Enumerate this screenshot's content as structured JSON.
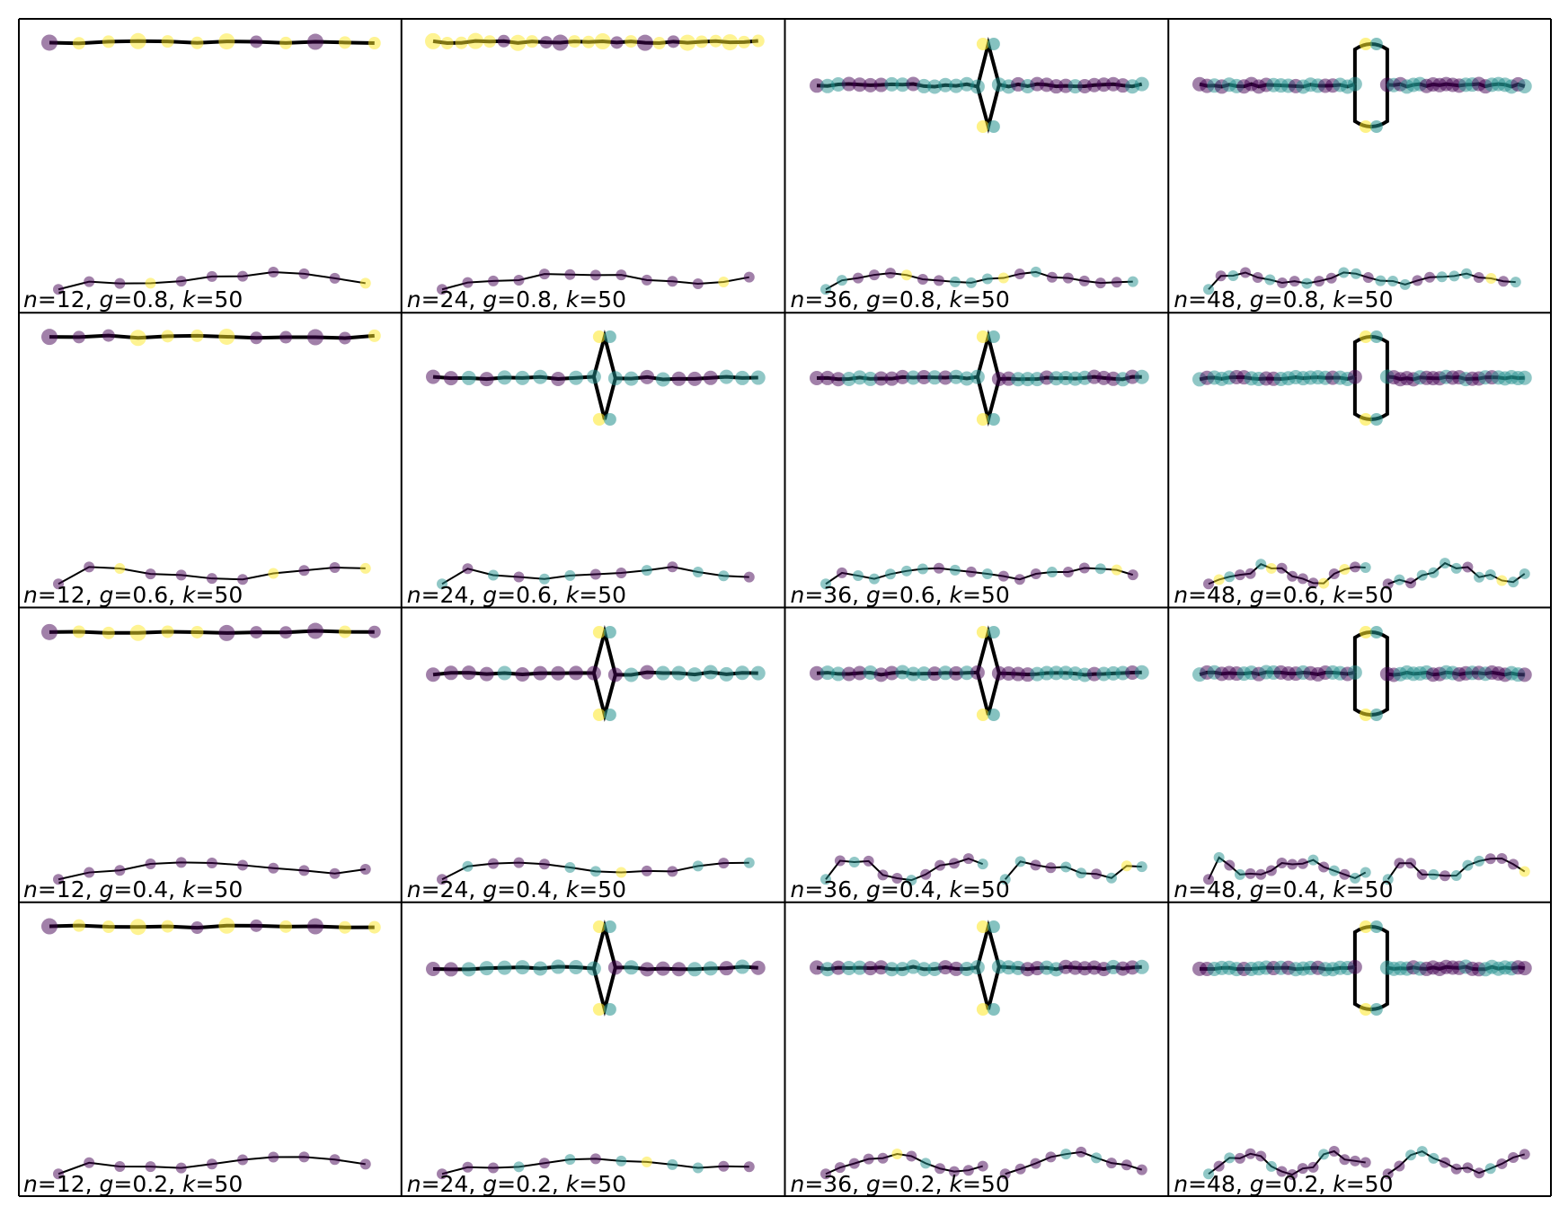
{
  "figure": {
    "rows": 4,
    "cols": 4,
    "colors": {
      "purple": "#440154",
      "teal": "#21908d",
      "yellow": "#fde725",
      "edge": "#000000",
      "frame": "#000000"
    },
    "panels": [
      {
        "n": "12",
        "g": "0.8",
        "k": "50",
        "label_n": "=12, ",
        "label_g": "=0.8, ",
        "label_k": "=50",
        "top_shape": "line",
        "top_color": "yellow",
        "bottom_color": "purple",
        "bottom_split": false
      },
      {
        "n": "24",
        "g": "0.8",
        "k": "50",
        "label_n": "=24, ",
        "label_g": "=0.8, ",
        "label_k": "=50",
        "top_shape": "line",
        "top_color": "yellow",
        "bottom_color": "purple",
        "bottom_split": false
      },
      {
        "n": "36",
        "g": "0.8",
        "k": "50",
        "label_n": "=36, ",
        "label_g": "=0.8, ",
        "label_k": "=50",
        "top_shape": "diamond",
        "top_color": "teal",
        "bottom_color": "mixed",
        "bottom_split": false
      },
      {
        "n": "48",
        "g": "0.8",
        "k": "50",
        "label_n": "=48, ",
        "label_g": "=0.8, ",
        "label_k": "=50",
        "top_shape": "loop",
        "top_color": "teal",
        "bottom_color": "mixed",
        "bottom_split": false
      },
      {
        "n": "12",
        "g": "0.6",
        "k": "50",
        "label_n": "=12, ",
        "label_g": "=0.6, ",
        "label_k": "=50",
        "top_shape": "line",
        "top_color": "yellow",
        "bottom_color": "purple",
        "bottom_split": false
      },
      {
        "n": "24",
        "g": "0.6",
        "k": "50",
        "label_n": "=24, ",
        "label_g": "=0.6, ",
        "label_k": "=50",
        "top_shape": "diamond",
        "top_color": "teal",
        "bottom_color": "mixed",
        "bottom_split": false
      },
      {
        "n": "36",
        "g": "0.6",
        "k": "50",
        "label_n": "=36, ",
        "label_g": "=0.6, ",
        "label_k": "=50",
        "top_shape": "diamond",
        "top_color": "teal",
        "bottom_color": "mixed",
        "bottom_split": false
      },
      {
        "n": "48",
        "g": "0.6",
        "k": "50",
        "label_n": "=48, ",
        "label_g": "=0.6, ",
        "label_k": "=50",
        "top_shape": "loop",
        "top_color": "teal",
        "bottom_color": "mixed",
        "bottom_split": true
      },
      {
        "n": "12",
        "g": "0.4",
        "k": "50",
        "label_n": "=12, ",
        "label_g": "=0.4, ",
        "label_k": "=50",
        "top_shape": "line",
        "top_color": "yellow",
        "bottom_color": "purple",
        "bottom_split": false
      },
      {
        "n": "24",
        "g": "0.4",
        "k": "50",
        "label_n": "=24, ",
        "label_g": "=0.4, ",
        "label_k": "=50",
        "top_shape": "diamond",
        "top_color": "teal",
        "bottom_color": "mixed",
        "bottom_split": false
      },
      {
        "n": "36",
        "g": "0.4",
        "k": "50",
        "label_n": "=36, ",
        "label_g": "=0.4, ",
        "label_k": "=50",
        "top_shape": "diamond",
        "top_color": "teal",
        "bottom_color": "mixed",
        "bottom_split": true
      },
      {
        "n": "48",
        "g": "0.4",
        "k": "50",
        "label_n": "=48, ",
        "label_g": "=0.4, ",
        "label_k": "=50",
        "top_shape": "loop",
        "top_color": "teal",
        "bottom_color": "mixed",
        "bottom_split": true
      },
      {
        "n": "12",
        "g": "0.2",
        "k": "50",
        "label_n": "=12, ",
        "label_g": "=0.2, ",
        "label_k": "=50",
        "top_shape": "line",
        "top_color": "yellow",
        "bottom_color": "purple",
        "bottom_split": false
      },
      {
        "n": "24",
        "g": "0.2",
        "k": "50",
        "label_n": "=24, ",
        "label_g": "=0.2, ",
        "label_k": "=50",
        "top_shape": "diamond",
        "top_color": "teal",
        "bottom_color": "mixed",
        "bottom_split": false
      },
      {
        "n": "36",
        "g": "0.2",
        "k": "50",
        "label_n": "=36, ",
        "label_g": "=0.2, ",
        "label_k": "=50",
        "top_shape": "diamond",
        "top_color": "teal",
        "bottom_color": "mixed",
        "bottom_split": true
      },
      {
        "n": "48",
        "g": "0.2",
        "k": "50",
        "label_n": "=48, ",
        "label_g": "=0.2, ",
        "label_k": "=50",
        "top_shape": "loop",
        "top_color": "teal",
        "bottom_color": "mixed",
        "bottom_split": true
      }
    ],
    "label_symbols": {
      "n": "n",
      "g": "g",
      "k": "k"
    }
  }
}
